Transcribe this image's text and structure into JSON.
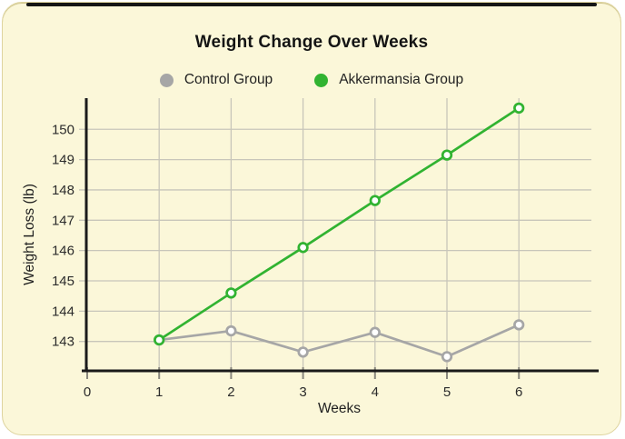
{
  "card": {
    "background": "#fbf7d9",
    "border_color": "#ded49f",
    "top_edge_color": "#151515",
    "outside_background": "#ffffff"
  },
  "chart_data": {
    "type": "line",
    "title": "Weight Change Over Weeks",
    "xlabel": "Weeks",
    "ylabel": "Weight Loss (lb)",
    "x": [
      1,
      2,
      3,
      4,
      5,
      6
    ],
    "xticks": [
      0,
      1,
      2,
      3,
      4,
      5,
      6
    ],
    "yticks": [
      143,
      144,
      145,
      146,
      147,
      148,
      149,
      150
    ],
    "xlim": [
      0,
      7
    ],
    "ylim": [
      142,
      151
    ],
    "grid": true,
    "legend_position": "top-center",
    "axis_color": "#1a1a1a",
    "gridline_color": "#c8c6ba",
    "tick_color": "#8a887e",
    "series": [
      {
        "name": "Control Group",
        "color": "#a6a6a6",
        "marker_fill": "#ffffff",
        "values": [
          143.05,
          143.35,
          142.65,
          143.3,
          142.5,
          143.55
        ]
      },
      {
        "name": "Akkermansia Group",
        "color": "#31b331",
        "marker_fill": "#ffffff",
        "values": [
          143.05,
          144.6,
          146.1,
          147.65,
          149.15,
          150.7
        ]
      }
    ]
  }
}
